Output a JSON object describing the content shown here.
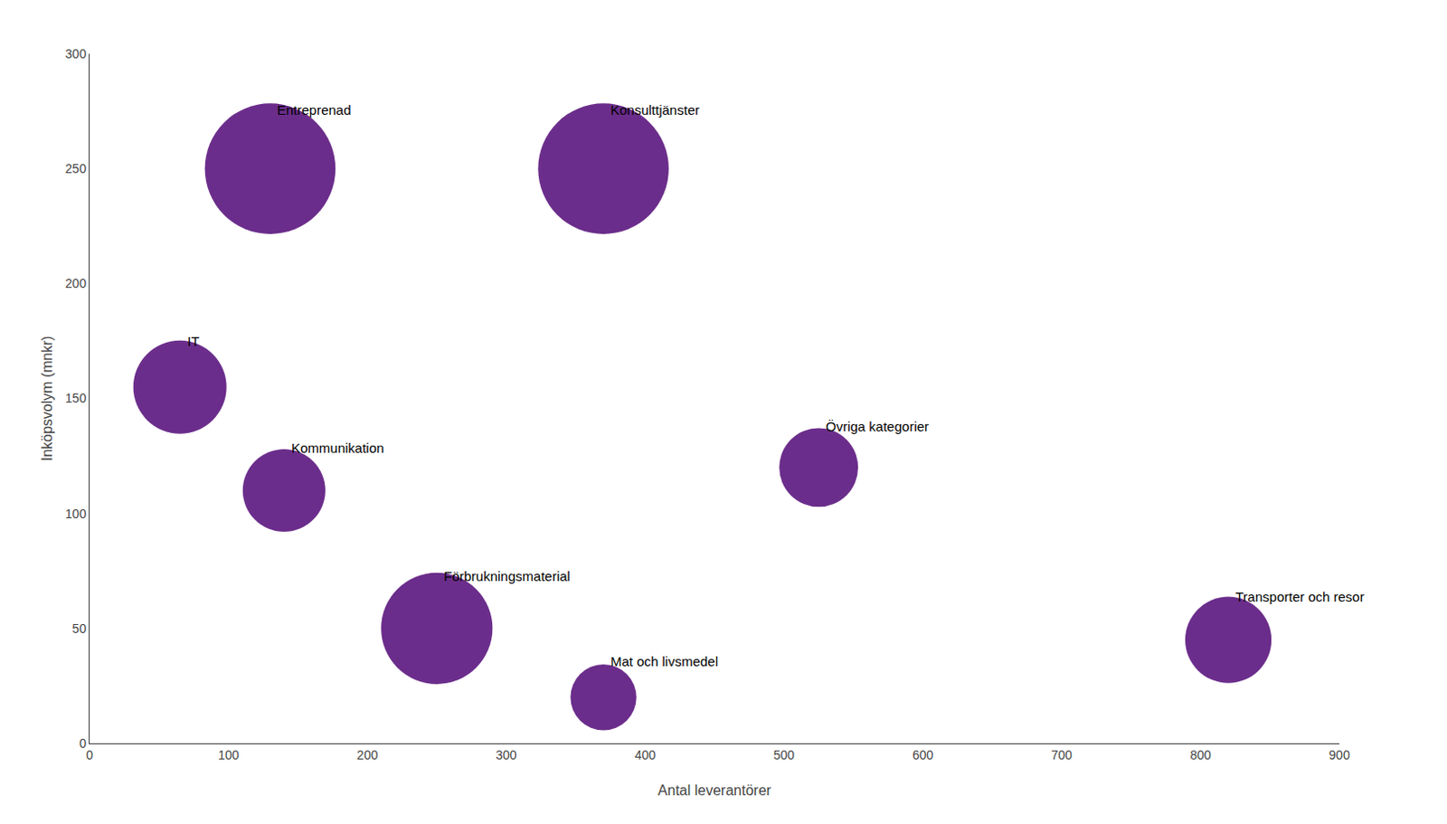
{
  "chart_data": {
    "type": "bubble",
    "categories": [
      "Entreprenad",
      "Konsulttjänster",
      "IT",
      "Kommunikation",
      "Övriga kategorier",
      "Förbrukningsmaterial",
      "Mat och livsmedel",
      "Transporter och resor"
    ],
    "x": [
      130,
      370,
      65,
      140,
      525,
      250,
      370,
      820
    ],
    "y": [
      250,
      250,
      155,
      110,
      120,
      50,
      20,
      45
    ],
    "sizes": [
      5500,
      5500,
      2800,
      2200,
      2000,
      4000,
      1400,
      2400
    ],
    "color": "#6B2D8B",
    "xlabel": "Antal leverantörer",
    "ylabel": "Inköpsvolym (mnkr)",
    "xlim": [
      0,
      900
    ],
    "ylim": [
      0,
      300
    ],
    "xticks": [
      0,
      100,
      200,
      300,
      400,
      500,
      600,
      700,
      800,
      900
    ],
    "yticks": [
      0,
      50,
      100,
      150,
      200,
      250,
      300
    ],
    "grid": false
  }
}
